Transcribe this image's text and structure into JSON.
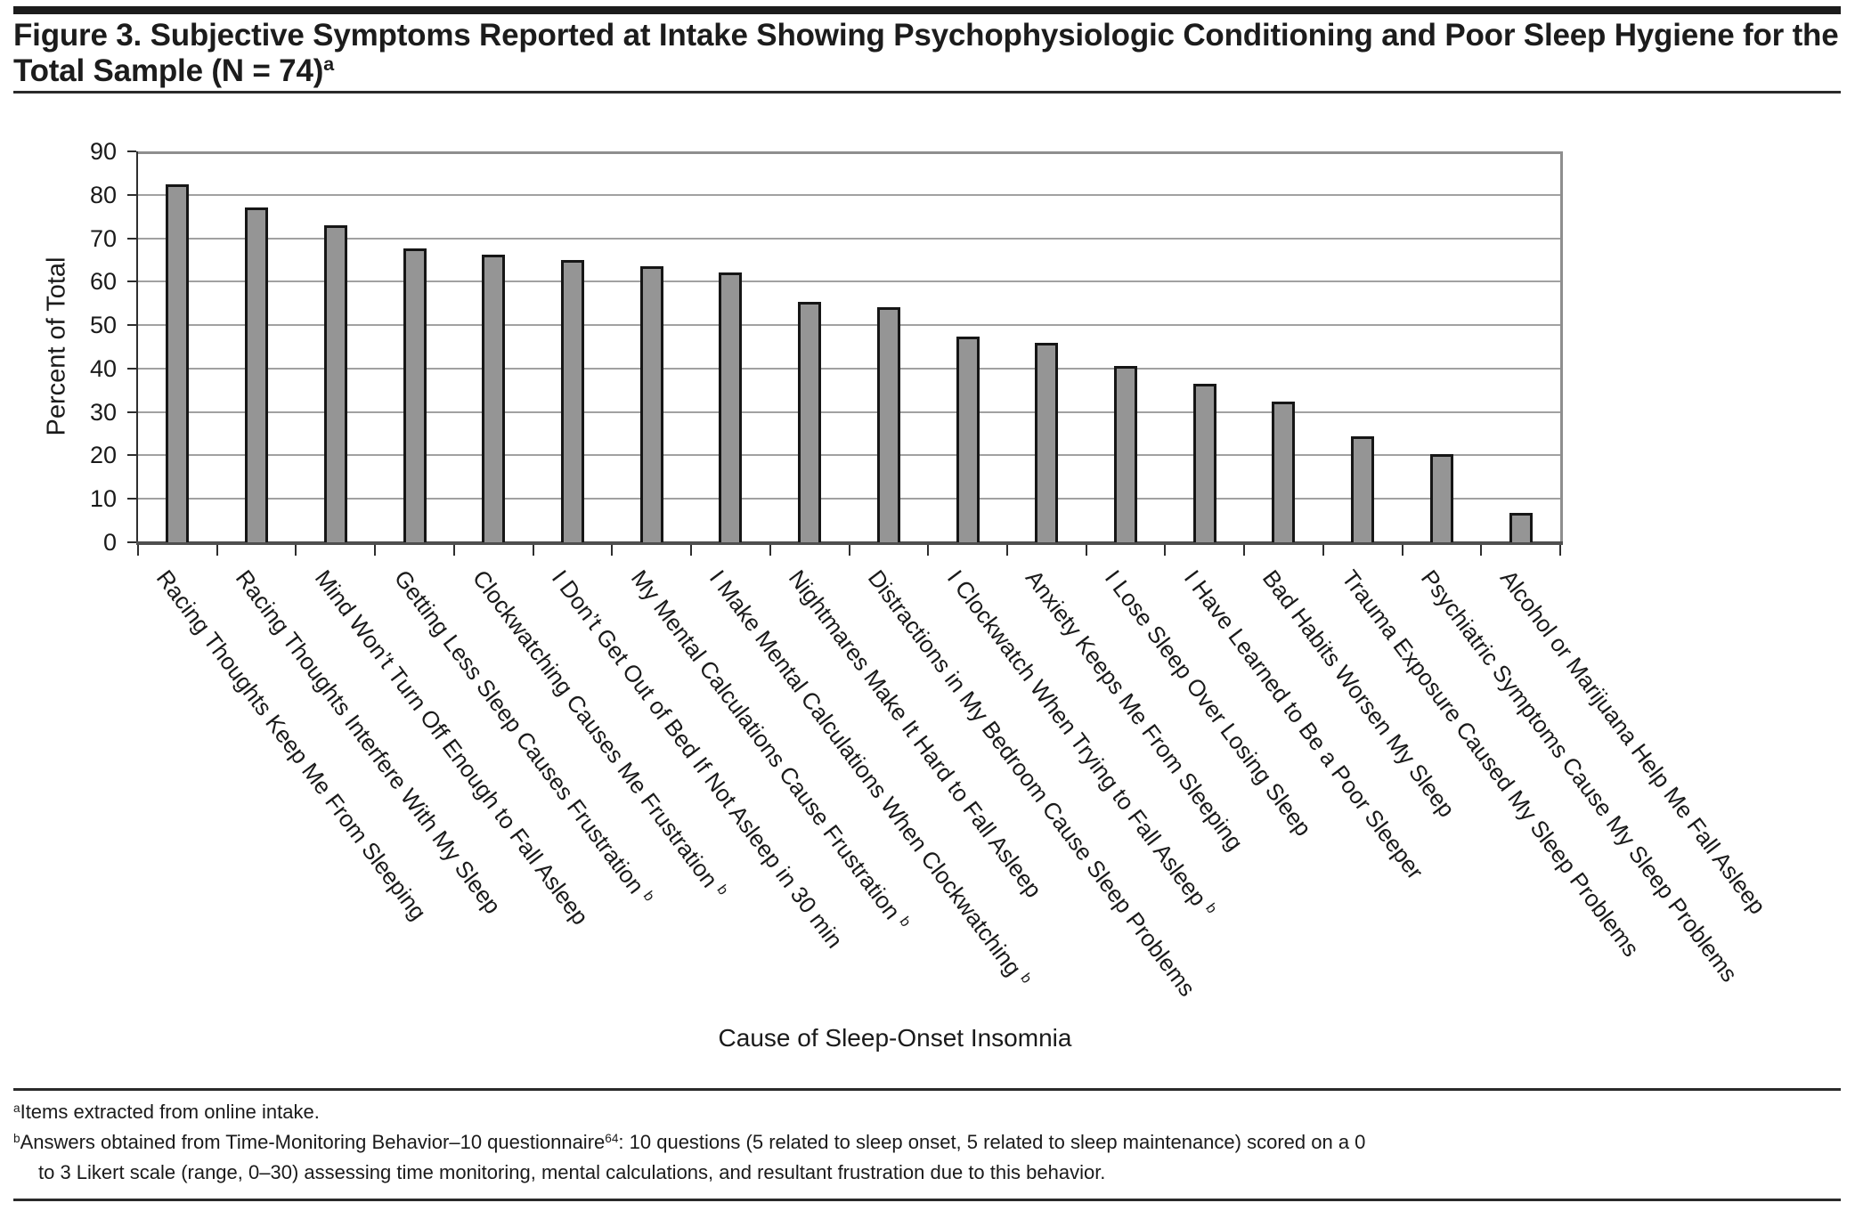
{
  "figure": {
    "title": {
      "line1": "Figure 3. Subjective Symptoms Reported at Intake Showing Psychophysiologic Conditioning and Poor Sleep Hygiene for the",
      "line2": "Total Sample (N = 74)^{a}"
    },
    "footnotes": {
      "a": "^{a}Items extracted from online intake.",
      "b_line1": "^{b}Answers obtained from Time-Monitoring Behavior–10 questionnaire^{64}: 10 questions (5 related to sleep onset, 5 related to sleep maintenance) scored on a 0",
      "b_line2": "to 3 Likert scale (range, 0–30) assessing time monitoring, mental calculations, and resultant frustration due to this behavior."
    }
  },
  "chart_data": {
    "type": "bar",
    "title": "",
    "xlabel": "Cause of Sleep-Onset Insomnia",
    "ylabel": "Percent of Total",
    "ylim": [
      0,
      90
    ],
    "ytick_step": 10,
    "grid": true,
    "legend": "none",
    "bar_color": "#959595",
    "bar_border_color": "#161616",
    "categories": [
      "Racing Thoughts Keep Me From Sleeping",
      "Racing Thoughts Interfere With My Sleep",
      "Mind Won’t Turn Off Enough to Fall Asleep",
      "Getting Less Sleep Causes Frustration ^{b}",
      "Clockwatching Causes Me Frustration ^{b}",
      "I Don’t Get Out of Bed If Not Asleep in 30 min",
      "My Mental Calculations Cause Frustration ^{b}",
      "I Make Mental Calculations When Clockwatching ^{b}",
      "Nightmares Make It Hard to Fall Asleep",
      "Distractions in My Bedroom Cause Sleep Problems",
      "I Clockwatch When Trying to Fall Asleep ^{b}",
      "Anxiety Keeps Me From Sleeping",
      "I Lose Sleep Over Losing Sleep",
      "I Have Learned to Be a Poor Sleeper",
      "Bad Habits Worsen My Sleep",
      "Trauma Exposure Caused My Sleep Problems",
      "Psychiatric Symptoms Cause My Sleep Problems",
      "Alcohol or Marijuana Help Me Fall Asleep"
    ],
    "values": [
      82.4,
      77.0,
      73.0,
      67.6,
      66.2,
      64.9,
      63.5,
      62.2,
      55.4,
      54.1,
      47.3,
      45.9,
      40.5,
      36.5,
      32.4,
      24.3,
      20.3,
      6.8
    ]
  }
}
